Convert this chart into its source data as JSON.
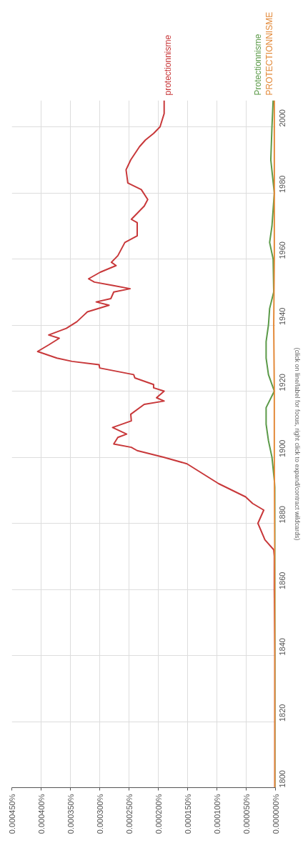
{
  "chart_data": {
    "type": "line",
    "ylim": [
      1800,
      2008
    ],
    "yticks": [
      1800,
      1820,
      1840,
      1860,
      1880,
      1900,
      1920,
      1940,
      1960,
      1980,
      2000
    ],
    "xlim": [
      0.00045,
      0
    ],
    "xticks": [
      {
        "value": 0,
        "label": "0.000000%"
      },
      {
        "value": 5e-05,
        "label": "0.000050%"
      },
      {
        "value": 0.0001,
        "label": "0.000100%"
      },
      {
        "value": 0.00015,
        "label": "0.000150%"
      },
      {
        "value": 0.0002,
        "label": "0.000200%"
      },
      {
        "value": 0.00025,
        "label": "0.000250%"
      },
      {
        "value": 0.0003,
        "label": "0.000300%"
      },
      {
        "value": 0.00035,
        "label": "0.000350%"
      },
      {
        "value": 0.0004,
        "label": "0.000400%"
      },
      {
        "value": 0.00045,
        "label": "0.000450%"
      }
    ],
    "grid": true,
    "annotations": [
      "(click on line/label for focus, right click to expand/contract wildcards)"
    ],
    "series": [
      {
        "name": "protectionnisme",
        "color": "#c8383a",
        "values": [
          1800,
          1820,
          1840,
          1860,
          1870,
          1872,
          1875,
          1880,
          1884,
          1886,
          1888,
          1892,
          1894,
          1898,
          1900,
          1902,
          1903,
          1904,
          1906,
          1907,
          1909,
          1911,
          1913,
          1916,
          1917,
          1918,
          1920,
          1921,
          1922,
          1924,
          1925,
          1927,
          1928,
          1929,
          1930,
          1932,
          1934,
          1936,
          1937,
          1939,
          1941,
          1943,
          1944,
          1946,
          1947,
          1948,
          1950,
          1951,
          1952,
          1953,
          1954,
          1956,
          1958,
          1959,
          1961,
          1965,
          1967,
          1971,
          1972,
          1976,
          1978,
          1981,
          1983,
          1987,
          1990,
          1994,
          1996,
          1998,
          2000,
          2004,
          2008
        ],
        "x": [
          1e-06,
          1e-06,
          1e-06,
          2e-06,
          2e-06,
          3e-06,
          1.8e-05,
          3e-05,
          2e-05,
          3.9e-05,
          5.1e-05,
          9.7e-05,
          0.000115,
          0.000151,
          0.000191,
          0.000236,
          0.000246,
          0.000276,
          0.000269,
          0.000254,
          0.000278,
          0.000246,
          0.000247,
          0.000224,
          0.00019,
          0.000203,
          0.00019,
          0.000208,
          0.000208,
          0.00024,
          0.000242,
          0.0003,
          0.000301,
          0.000347,
          0.000373,
          0.000406,
          0.000387,
          0.000369,
          0.000387,
          0.000357,
          0.000339,
          0.000327,
          0.000321,
          0.000284,
          0.000306,
          0.000281,
          0.000276,
          0.000248,
          0.000278,
          0.000309,
          0.000319,
          0.000299,
          0.000272,
          0.00028,
          0.000269,
          0.000257,
          0.000236,
          0.000236,
          0.000246,
          0.000224,
          0.000218,
          0.000229,
          0.000252,
          0.000255,
          0.000247,
          0.000232,
          0.000222,
          0.000208,
          0.000197,
          0.00019,
          0.00019
        ]
      },
      {
        "name": "Protectionnisme",
        "color": "#5b9a48",
        "values": [
          1800,
          1890,
          1893,
          1900,
          1905,
          1910,
          1915,
          1920,
          1925,
          1930,
          1935,
          1940,
          1945,
          1950,
          1960,
          1965,
          1970,
          1980,
          1990,
          2000,
          2008
        ],
        "x": [
          0,
          0,
          2e-06,
          6e-06,
          1.2e-05,
          1.6e-05,
          1.6e-05,
          2e-06,
          1.2e-05,
          1.6e-05,
          1.6e-05,
          1.2e-05,
          1e-05,
          3e-06,
          4e-06,
          1e-05,
          6e-06,
          2e-06,
          8e-06,
          6e-06,
          4e-06
        ]
      },
      {
        "name": "PROTECTIONNISME",
        "color": "#e38a3a",
        "values": [
          1800,
          1860,
          1900,
          1920,
          1940,
          1960,
          1980,
          2000,
          2008
        ],
        "x": [
          1e-06,
          1e-06,
          2e-06,
          2e-06,
          3e-06,
          2e-06,
          2e-06,
          2e-06,
          2e-06
        ]
      }
    ]
  }
}
